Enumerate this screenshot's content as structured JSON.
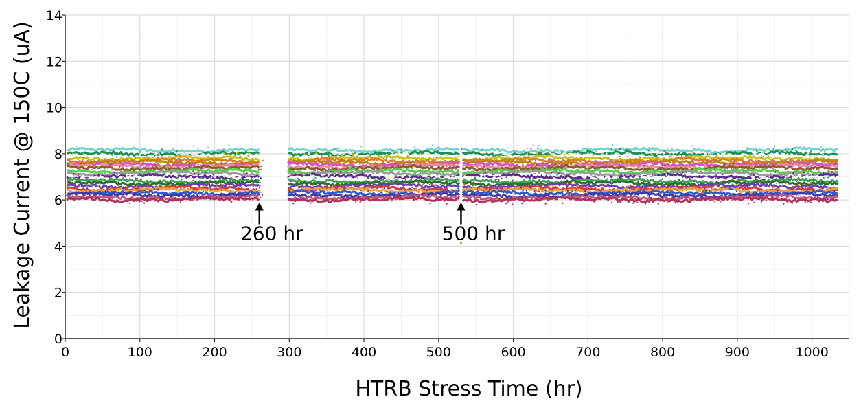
{
  "chart_data": {
    "type": "scatter",
    "title": "",
    "xlabel": "HTRB Stress Time (hr)",
    "ylabel": "Leakage Current @ 150C (uA)",
    "xlim": [
      0,
      1050
    ],
    "ylim": [
      0,
      14
    ],
    "xticks": [
      0,
      100,
      200,
      300,
      400,
      500,
      600,
      700,
      800,
      900,
      1000
    ],
    "yticks": [
      0,
      2,
      4,
      6,
      8,
      10,
      12,
      14
    ],
    "grid": true,
    "segments": [
      [
        2,
        260
      ],
      [
        298,
        528
      ],
      [
        532,
        1035
      ]
    ],
    "series": [
      {
        "color": "#6fd4cc",
        "level": 8.15
      },
      {
        "color": "#1f8f5a",
        "level": 8.0
      },
      {
        "color": "#ffffff",
        "level": 7.88
      },
      {
        "color": "#c9c31f",
        "level": 7.8
      },
      {
        "color": "#e07a2a",
        "level": 7.7
      },
      {
        "color": "#b8860b",
        "level": 7.62
      },
      {
        "color": "#d94ec9",
        "level": 7.52
      },
      {
        "color": "#e98aa3",
        "level": 7.45
      },
      {
        "color": "#8c5a2b",
        "level": 7.38
      },
      {
        "color": "#4bd142",
        "level": 7.25
      },
      {
        "color": "#9a9a9a",
        "level": 7.15
      },
      {
        "color": "#5a2d8f",
        "level": 7.0
      },
      {
        "color": "#ffffff",
        "level": 6.9
      },
      {
        "color": "#3fa34d",
        "level": 6.82
      },
      {
        "color": "#2e6b2e",
        "level": 6.72
      },
      {
        "color": "#6a3fb5",
        "level": 6.6
      },
      {
        "color": "#d83a3a",
        "level": 6.48
      },
      {
        "color": "#e8a23c",
        "level": 6.42
      },
      {
        "color": "#2a5bd7",
        "level": 6.3
      },
      {
        "color": "#3a3aa8",
        "level": 6.2
      },
      {
        "color": "#c45a7a",
        "level": 6.1
      },
      {
        "color": "#b03060",
        "level": 6.02
      }
    ],
    "annotations": [
      {
        "text": "260 hr",
        "x": 260,
        "y": 5.9
      },
      {
        "text": "500 hr",
        "x": 530,
        "y": 5.9
      }
    ],
    "outliers": [
      {
        "x": 530,
        "y": 4.15,
        "color": "#e07a2a"
      }
    ]
  }
}
